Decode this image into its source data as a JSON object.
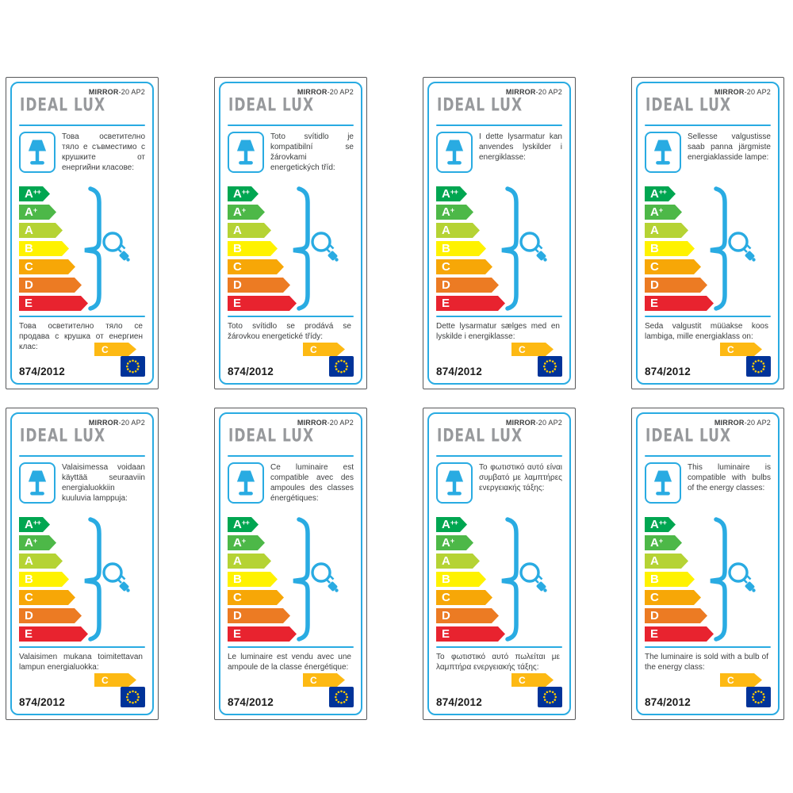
{
  "product": {
    "brand": "IDEAL LUX",
    "model_bold": "MIRROR",
    "model_rest": "-20 AP2",
    "regulation": "874/2012",
    "sold_class": "C"
  },
  "colors": {
    "accent-blue": "#29abe2",
    "logo-gray": "#97999c",
    "border-gray": "#57585a",
    "text-dark": "#3c3e3f",
    "class-arrow-gold": "#fdb913",
    "eu-flag-blue": "#003399",
    "eu-star-yellow": "#ffcc00"
  },
  "energy_classes": [
    {
      "letter": "A",
      "sup": "++",
      "color": "#00a651"
    },
    {
      "letter": "A",
      "sup": "+",
      "color": "#4db848"
    },
    {
      "letter": "A",
      "sup": "",
      "color": "#b5d334"
    },
    {
      "letter": "B",
      "sup": "",
      "color": "#fff200"
    },
    {
      "letter": "C",
      "sup": "",
      "color": "#f7a707"
    },
    {
      "letter": "D",
      "sup": "",
      "color": "#ec7b23"
    },
    {
      "letter": "E",
      "sup": "",
      "color": "#e8232f"
    }
  ],
  "labels": [
    {
      "top_text": "Това осветително тяло е съвместимо с крушките от енергийни класове:",
      "bottom_text": "Това осветително тяло се продава с крушка от енергиен клас:"
    },
    {
      "top_text": "Toto svítidlo je kompatibilní se žárovkami energetických tříd:",
      "bottom_text": "Toto svítidlo se prodává se žárovkou energetické třídy:"
    },
    {
      "top_text": "I dette lysarmatur kan anvendes lyskilder i energiklasse:",
      "bottom_text": "Dette lysarmatur sælges med en lyskilde i energiklasse:"
    },
    {
      "top_text": "Sellesse valgustisse saab panna järgmiste energiaklasside lampe:",
      "bottom_text": "Seda valgustit müüakse koos lambiga, mille energiaklass on:"
    },
    {
      "top_text": "Valaisimessa voidaan käyttää seuraaviin energialuokkiin kuuluvia lamppuja:",
      "bottom_text": "Valaisimen mukana toimitettavan lampun energialuokka:"
    },
    {
      "top_text": "Ce luminaire est compatible avec des ampoules des classes énergétiques:",
      "bottom_text": "Le luminaire est vendu avec une ampoule de la classe énergétique:"
    },
    {
      "top_text": "Το φωτιστικό αυτό είναι συμβατό με λαμπτήρες ενεργειακής τάξης:",
      "bottom_text": "Το φωτιστικό αυτό πωλείται με λαμπτήρα ενεργειακής τάξης:"
    },
    {
      "top_text": "This luminaire is compatible with bulbs of the energy classes:",
      "bottom_text": "The luminaire is sold with a bulb of the energy class:"
    }
  ]
}
